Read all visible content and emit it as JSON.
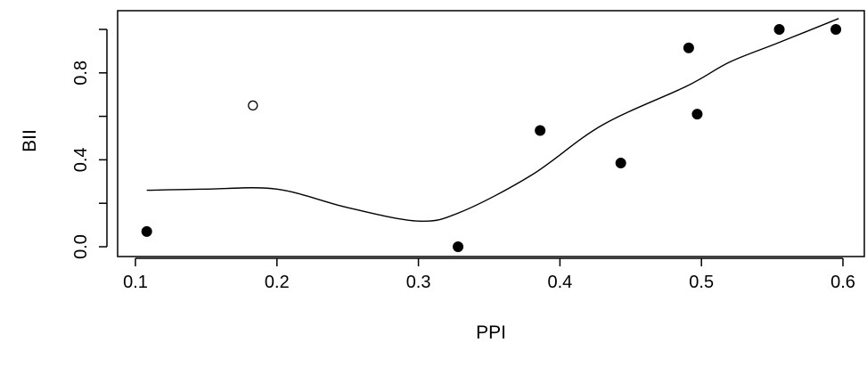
{
  "chart_data": {
    "type": "scatter",
    "title": "",
    "xlabel": "PPI",
    "ylabel": "BII",
    "xlim": [
      0.1,
      0.6
    ],
    "ylim": [
      0.0,
      1.0
    ],
    "x_ticks": [
      0.1,
      0.2,
      0.3,
      0.4,
      0.5,
      0.6
    ],
    "x_tick_labels": [
      "0.1",
      "0.2",
      "0.3",
      "0.4",
      "0.5",
      "0.6"
    ],
    "y_ticks": [
      0.0,
      0.4,
      0.8
    ],
    "y_tick_labels": [
      "0.0",
      "0.4",
      "0.8"
    ],
    "grid": false,
    "series": [
      {
        "marker": "filled-circle",
        "points": [
          {
            "x": 0.108,
            "y": 0.07
          },
          {
            "x": 0.328,
            "y": 0.0
          },
          {
            "x": 0.386,
            "y": 0.535
          },
          {
            "x": 0.443,
            "y": 0.385
          },
          {
            "x": 0.491,
            "y": 0.915
          },
          {
            "x": 0.497,
            "y": 0.61
          },
          {
            "x": 0.555,
            "y": 1.0
          },
          {
            "x": 0.595,
            "y": 1.0
          }
        ]
      },
      {
        "marker": "open-circle",
        "points": [
          {
            "x": 0.183,
            "y": 0.65
          }
        ]
      },
      {
        "marker": "line",
        "type": "line",
        "points": [
          {
            "x": 0.108,
            "y": 0.26
          },
          {
            "x": 0.15,
            "y": 0.265
          },
          {
            "x": 0.2,
            "y": 0.265
          },
          {
            "x": 0.25,
            "y": 0.18
          },
          {
            "x": 0.3,
            "y": 0.118
          },
          {
            "x": 0.33,
            "y": 0.16
          },
          {
            "x": 0.38,
            "y": 0.33
          },
          {
            "x": 0.43,
            "y": 0.56
          },
          {
            "x": 0.49,
            "y": 0.74
          },
          {
            "x": 0.52,
            "y": 0.85
          },
          {
            "x": 0.555,
            "y": 0.94
          },
          {
            "x": 0.597,
            "y": 1.05
          }
        ]
      }
    ]
  }
}
